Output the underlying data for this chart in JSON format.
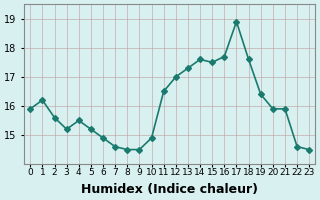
{
  "x": [
    0,
    1,
    2,
    3,
    4,
    5,
    6,
    7,
    8,
    9,
    10,
    11,
    12,
    13,
    14,
    15,
    16,
    17,
    18,
    19,
    20,
    21,
    22,
    23
  ],
  "y": [
    15.9,
    16.2,
    15.6,
    15.2,
    15.5,
    15.2,
    14.9,
    14.6,
    14.5,
    14.5,
    14.9,
    16.5,
    17.0,
    17.3,
    17.6,
    17.5,
    17.7,
    18.9,
    17.6,
    16.4,
    15.9,
    15.9,
    14.6,
    14.5
  ],
  "line_color": "#1a7a6e",
  "marker": "D",
  "marker_size": 3,
  "line_width": 1.2,
  "xlabel": "Humidex (Indice chaleur)",
  "xlabel_fontsize": 9,
  "xlabel_fontweight": "bold",
  "ylim": [
    14.0,
    19.5
  ],
  "yticks": [
    15,
    16,
    17,
    18,
    19
  ],
  "xticks": [
    0,
    1,
    2,
    3,
    4,
    5,
    6,
    7,
    8,
    9,
    10,
    11,
    12,
    13,
    14,
    15,
    16,
    17,
    18,
    19,
    20,
    21,
    22,
    23
  ],
  "xtick_labels": [
    "0",
    "1",
    "2",
    "3",
    "4",
    "5",
    "6",
    "7",
    "8",
    "9",
    "10",
    "11",
    "12",
    "13",
    "14",
    "15",
    "16",
    "17",
    "18",
    "19",
    "20",
    "21",
    "22",
    "23"
  ],
  "background_color": "#d8f0f0",
  "grid_color": "#c0a0a0",
  "grid_alpha": 0.7
}
